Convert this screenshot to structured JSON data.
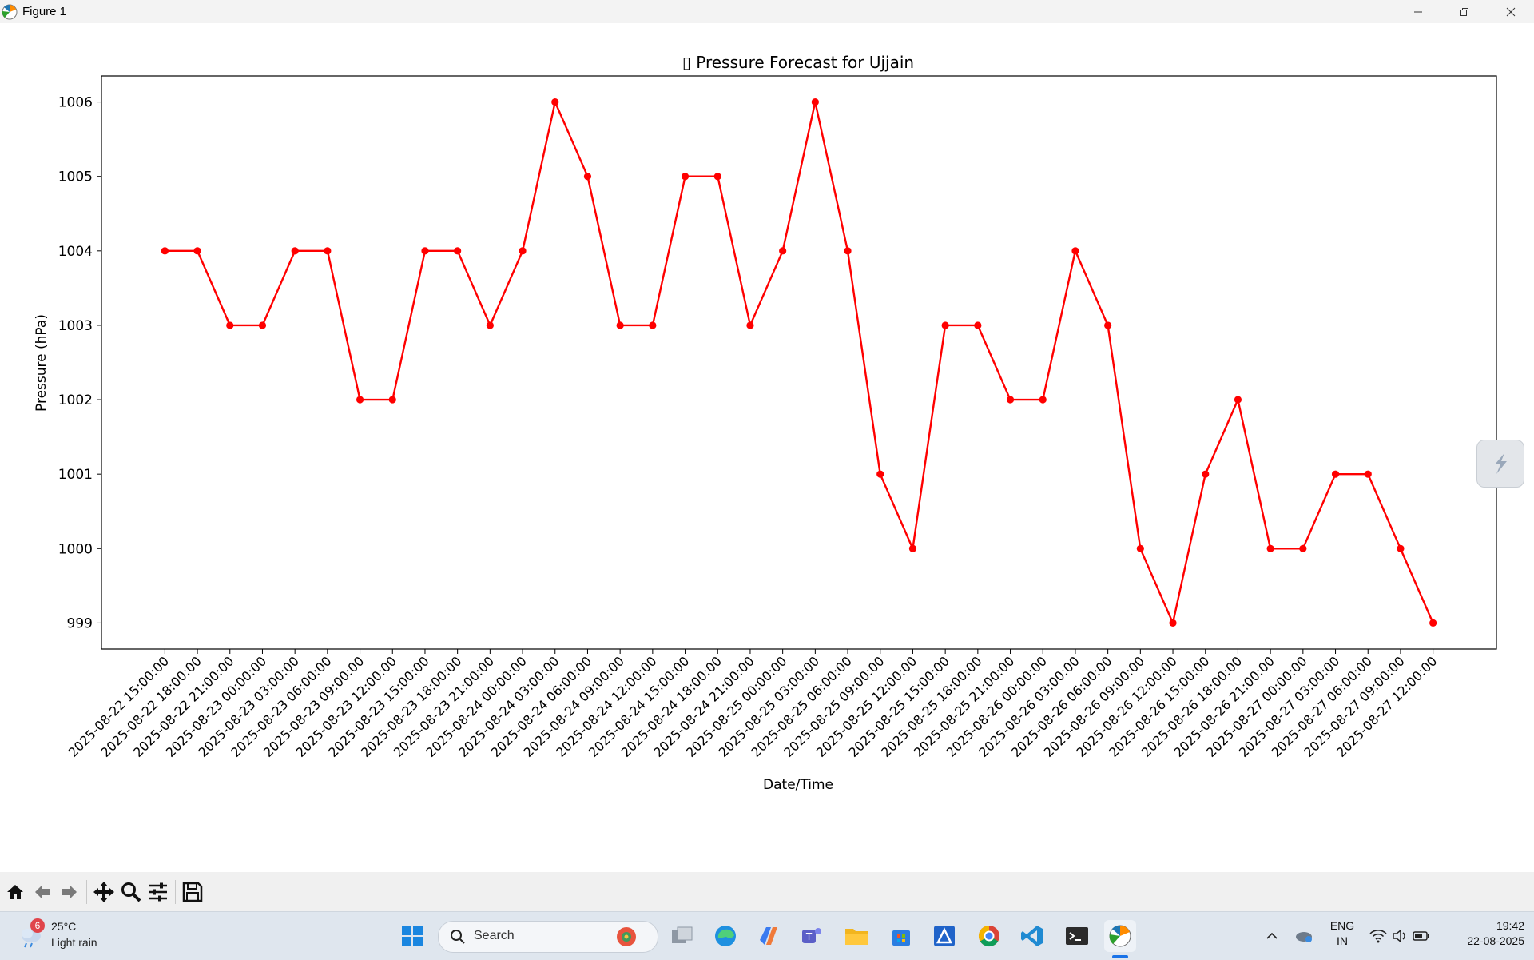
{
  "window": {
    "title": "Figure 1"
  },
  "chart_data": {
    "type": "line",
    "title": "▯ Pressure Forecast for Ujjain",
    "xlabel": "Date/Time",
    "ylabel": "Pressure (hPa)",
    "ylim": [
      998.65,
      1006.35
    ],
    "yticks": [
      999,
      1000,
      1001,
      1002,
      1003,
      1004,
      1005,
      1006
    ],
    "categories": [
      "2025-08-22 15:00:00",
      "2025-08-22 18:00:00",
      "2025-08-22 21:00:00",
      "2025-08-23 00:00:00",
      "2025-08-23 03:00:00",
      "2025-08-23 06:00:00",
      "2025-08-23 09:00:00",
      "2025-08-23 12:00:00",
      "2025-08-23 15:00:00",
      "2025-08-23 18:00:00",
      "2025-08-23 21:00:00",
      "2025-08-24 00:00:00",
      "2025-08-24 03:00:00",
      "2025-08-24 06:00:00",
      "2025-08-24 09:00:00",
      "2025-08-24 12:00:00",
      "2025-08-24 15:00:00",
      "2025-08-24 18:00:00",
      "2025-08-24 21:00:00",
      "2025-08-25 00:00:00",
      "2025-08-25 03:00:00",
      "2025-08-25 06:00:00",
      "2025-08-25 09:00:00",
      "2025-08-25 12:00:00",
      "2025-08-25 15:00:00",
      "2025-08-25 18:00:00",
      "2025-08-25 21:00:00",
      "2025-08-26 00:00:00",
      "2025-08-26 03:00:00",
      "2025-08-26 06:00:00",
      "2025-08-26 09:00:00",
      "2025-08-26 12:00:00",
      "2025-08-26 15:00:00",
      "2025-08-26 18:00:00",
      "2025-08-26 21:00:00",
      "2025-08-27 00:00:00",
      "2025-08-27 03:00:00",
      "2025-08-27 06:00:00",
      "2025-08-27 09:00:00",
      "2025-08-27 12:00:00"
    ],
    "values": [
      1004,
      1004,
      1003,
      1003,
      1004,
      1004,
      1002,
      1002,
      1004,
      1004,
      1003,
      1004,
      1006,
      1005,
      1003,
      1003,
      1005,
      1005,
      1003,
      1004,
      1006,
      1004,
      1001,
      1000,
      1003,
      1003,
      1002,
      1002,
      1004,
      1003,
      1000,
      999,
      1001,
      1002,
      1000,
      1000,
      1001,
      1001,
      1000,
      999
    ],
    "line_color": "#ff0000",
    "marker": "circle",
    "grid": false,
    "legend": "none"
  },
  "toolbar": {
    "icons": [
      "home-icon",
      "back-arrow-icon",
      "forward-arrow-icon",
      "pan-icon",
      "zoom-icon",
      "configure-subplots-icon",
      "save-icon"
    ]
  },
  "taskbar": {
    "weather": {
      "badge": "6",
      "temp": "25°C",
      "desc": "Light rain"
    },
    "search_label": "Search",
    "tray": {
      "lang_top": "ENG",
      "lang_bottom": "IN",
      "time": "19:42",
      "date": "22-08-2025"
    }
  }
}
